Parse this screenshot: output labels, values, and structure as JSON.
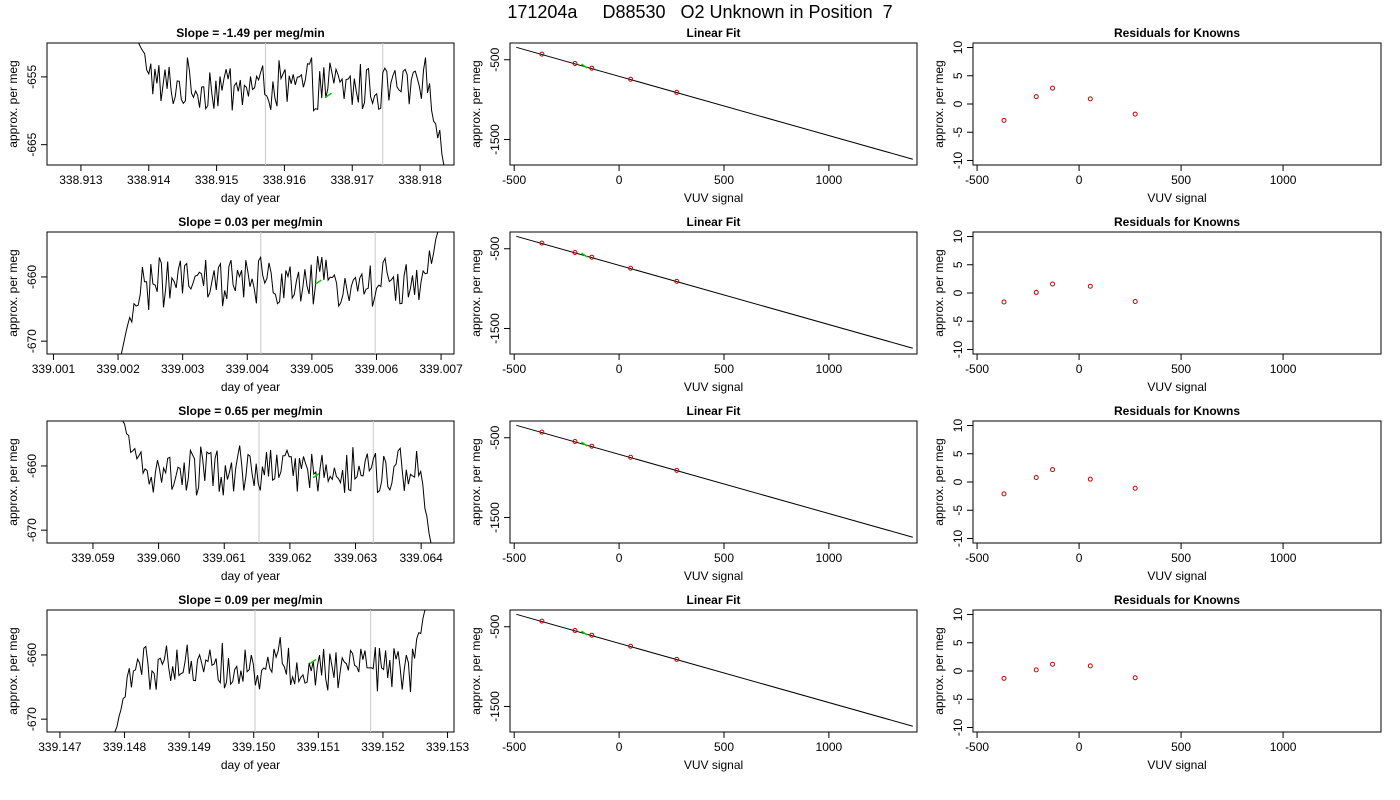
{
  "figure_title": "171204a     D88530   O2 Unknown in Position  7",
  "colors": {
    "trace": "#000000",
    "unknown_point": "#00cc00",
    "residual_point": "#cc0000",
    "marker_line": "#c8c8c8",
    "fit_line": "#000000"
  },
  "chart_data": [
    {
      "type": "line",
      "row": 0,
      "panel": "time-series",
      "title": "Slope =  -1.49  per meg/min",
      "xlabel": "day of year",
      "ylabel": "approx. per meg",
      "xlim": [
        338.9125,
        338.9185
      ],
      "ylim": [
        -668,
        -650
      ],
      "xticks": [
        338.913,
        338.914,
        338.915,
        338.916,
        338.917,
        338.918
      ],
      "xtick_labels": [
        "338.913",
        "338.914",
        "338.915",
        "338.916",
        "338.917",
        "338.918"
      ],
      "yticks": [
        -655,
        -665
      ],
      "ytick_labels": [
        "-655",
        "-665"
      ],
      "vlines": [
        338.91572,
        338.91745
      ],
      "start": [
        338.91385,
        -650
      ],
      "end": [
        338.91835,
        -668
      ],
      "mean_level": -656.5,
      "unknown_marker": [
        338.91665,
        -657.7
      ]
    },
    {
      "type": "scatter",
      "row": 0,
      "panel": "linear-fit",
      "title": "Linear Fit",
      "xlabel": "VUV signal",
      "ylabel": "approx. per meg",
      "xlim": [
        -520,
        1420
      ],
      "ylim": [
        -1820,
        -290
      ],
      "xticks": [
        -500,
        0,
        500,
        1000
      ],
      "xtick_labels": [
        "-500",
        "0",
        "500",
        "1000"
      ],
      "yticks": [
        -500,
        -1500
      ],
      "ytick_labels": [
        "-500",
        "-1500"
      ],
      "fit_line": [
        [
          -490,
          -344
        ],
        [
          1400,
          -1748
        ]
      ],
      "knowns_x": [
        -368,
        -210,
        -130,
        55,
        275
      ],
      "knowns_y": [
        -429,
        -547,
        -606,
        -745,
        -909
      ],
      "unknown_point": [
        -165,
        -580
      ]
    },
    {
      "type": "scatter",
      "row": 0,
      "panel": "residuals",
      "title": "Residuals for Knowns",
      "xlabel": "VUV signal",
      "ylabel": "approx. per meg",
      "xlim": [
        -520,
        1480
      ],
      "ylim": [
        -10.8,
        10.8
      ],
      "xticks": [
        -500,
        0,
        500,
        1000
      ],
      "xtick_labels": [
        "-500",
        "0",
        "500",
        "1000"
      ],
      "yticks": [
        -10,
        -5,
        0,
        5,
        10
      ],
      "ytick_labels": [
        "-10",
        "-5",
        "0",
        "5",
        "10"
      ],
      "x": [
        -368,
        -210,
        -130,
        55,
        275
      ],
      "y": [
        -2.9,
        1.3,
        2.8,
        0.9,
        -1.8
      ]
    },
    {
      "type": "line",
      "row": 1,
      "panel": "time-series",
      "title": "Slope =  0.03  per meg/min",
      "xlabel": "day of year",
      "ylabel": "approx. per meg",
      "xlim": [
        339.0009,
        339.0072
      ],
      "ylim": [
        -672,
        -653
      ],
      "xticks": [
        339.001,
        339.002,
        339.003,
        339.004,
        339.005,
        339.006,
        339.007
      ],
      "xtick_labels": [
        "339.001",
        "339.002",
        "339.003",
        "339.004",
        "339.005",
        "339.006",
        "339.007"
      ],
      "yticks": [
        -660,
        -670
      ],
      "ytick_labels": [
        "-660",
        "-670"
      ],
      "vlines": [
        339.00421,
        339.00598
      ],
      "start": [
        339.00205,
        -672
      ],
      "end": [
        339.00695,
        -653
      ],
      "mean_level": -661.0,
      "unknown_marker": [
        339.0051,
        -660.8
      ]
    },
    {
      "type": "scatter",
      "row": 1,
      "panel": "linear-fit",
      "title": "Linear Fit",
      "xlabel": "VUV signal",
      "ylabel": "approx. per meg",
      "xlim": [
        -520,
        1420
      ],
      "ylim": [
        -1820,
        -290
      ],
      "xticks": [
        -500,
        0,
        500,
        1000
      ],
      "xtick_labels": [
        "-500",
        "0",
        "500",
        "1000"
      ],
      "yticks": [
        -500,
        -1500
      ],
      "ytick_labels": [
        "-500",
        "-1500"
      ],
      "fit_line": [
        [
          -490,
          -344
        ],
        [
          1400,
          -1748
        ]
      ],
      "knowns_x": [
        -368,
        -210,
        -130,
        55,
        275
      ],
      "knowns_y": [
        -429,
        -547,
        -606,
        -745,
        -909
      ],
      "unknown_point": [
        -165,
        -580
      ]
    },
    {
      "type": "scatter",
      "row": 1,
      "panel": "residuals",
      "title": "Residuals for Knowns",
      "xlabel": "VUV signal",
      "ylabel": "approx. per meg",
      "xlim": [
        -520,
        1480
      ],
      "ylim": [
        -10.8,
        10.8
      ],
      "xticks": [
        -500,
        0,
        500,
        1000
      ],
      "xtick_labels": [
        "-500",
        "0",
        "500",
        "1000"
      ],
      "yticks": [
        -10,
        -5,
        0,
        5,
        10
      ],
      "ytick_labels": [
        "-10",
        "-5",
        "0",
        "5",
        "10"
      ],
      "x": [
        -368,
        -210,
        -130,
        55,
        275
      ],
      "y": [
        -1.6,
        0.1,
        1.6,
        1.2,
        -1.5
      ]
    },
    {
      "type": "line",
      "row": 2,
      "panel": "time-series",
      "title": "Slope =  0.65  per meg/min",
      "xlabel": "day of year",
      "ylabel": "approx. per meg",
      "xlim": [
        339.0583,
        339.0645
      ],
      "ylim": [
        -672,
        -653
      ],
      "xticks": [
        339.059,
        339.06,
        339.061,
        339.062,
        339.063,
        339.064
      ],
      "xtick_labels": [
        "339.059",
        "339.060",
        "339.061",
        "339.062",
        "339.063",
        "339.064"
      ],
      "yticks": [
        -660,
        -670
      ],
      "ytick_labels": [
        "-660",
        "-670"
      ],
      "vlines": [
        339.06153,
        339.06327
      ],
      "start": [
        339.05945,
        -653
      ],
      "end": [
        339.06415,
        -672
      ],
      "mean_level": -661.0,
      "unknown_marker": [
        339.0624,
        -661.5
      ]
    },
    {
      "type": "scatter",
      "row": 2,
      "panel": "linear-fit",
      "title": "Linear Fit",
      "xlabel": "VUV signal",
      "ylabel": "approx. per meg",
      "xlim": [
        -520,
        1420
      ],
      "ylim": [
        -1820,
        -290
      ],
      "xticks": [
        -500,
        0,
        500,
        1000
      ],
      "xtick_labels": [
        "-500",
        "0",
        "500",
        "1000"
      ],
      "yticks": [
        -500,
        -1500
      ],
      "ytick_labels": [
        "-500",
        "-1500"
      ],
      "fit_line": [
        [
          -490,
          -344
        ],
        [
          1400,
          -1748
        ]
      ],
      "knowns_x": [
        -368,
        -210,
        -130,
        55,
        275
      ],
      "knowns_y": [
        -429,
        -547,
        -606,
        -745,
        -909
      ],
      "unknown_point": [
        -165,
        -580
      ]
    },
    {
      "type": "scatter",
      "row": 2,
      "panel": "residuals",
      "title": "Residuals for Knowns",
      "xlabel": "VUV signal",
      "ylabel": "approx. per meg",
      "xlim": [
        -520,
        1480
      ],
      "ylim": [
        -10.8,
        10.8
      ],
      "xticks": [
        -500,
        0,
        500,
        1000
      ],
      "xtick_labels": [
        "-500",
        "0",
        "500",
        "1000"
      ],
      "yticks": [
        -10,
        -5,
        0,
        5,
        10
      ],
      "ytick_labels": [
        "-10",
        "-5",
        "0",
        "5",
        "10"
      ],
      "x": [
        -368,
        -210,
        -130,
        55,
        275
      ],
      "y": [
        -2.1,
        0.8,
        2.2,
        0.5,
        -1.1
      ]
    },
    {
      "type": "line",
      "row": 3,
      "panel": "time-series",
      "title": "Slope =  0.09  per meg/min",
      "xlabel": "day of year",
      "ylabel": "approx. per meg",
      "xlim": [
        339.1468,
        339.1531
      ],
      "ylim": [
        -672,
        -653
      ],
      "xticks": [
        339.147,
        339.148,
        339.149,
        339.15,
        339.151,
        339.152,
        339.153
      ],
      "xtick_labels": [
        "339.147",
        "339.148",
        "339.149",
        "339.150",
        "339.151",
        "339.152",
        "339.153"
      ],
      "yticks": [
        -660,
        -670
      ],
      "ytick_labels": [
        "-660",
        "-670"
      ],
      "vlines": [
        339.15002,
        339.15181
      ],
      "start": [
        339.14785,
        -672
      ],
      "end": [
        339.15265,
        -653
      ],
      "mean_level": -661.5,
      "unknown_marker": [
        339.15092,
        -661.0
      ]
    },
    {
      "type": "scatter",
      "row": 3,
      "panel": "linear-fit",
      "title": "Linear Fit",
      "xlabel": "VUV signal",
      "ylabel": "approx. per meg",
      "xlim": [
        -520,
        1420
      ],
      "ylim": [
        -1820,
        -290
      ],
      "xticks": [
        -500,
        0,
        500,
        1000
      ],
      "xtick_labels": [
        "-500",
        "0",
        "500",
        "1000"
      ],
      "yticks": [
        -500,
        -1500
      ],
      "ytick_labels": [
        "-500",
        "-1500"
      ],
      "fit_line": [
        [
          -490,
          -344
        ],
        [
          1400,
          -1748
        ]
      ],
      "knowns_x": [
        -368,
        -210,
        -130,
        55,
        275
      ],
      "knowns_y": [
        -429,
        -547,
        -606,
        -745,
        -909
      ],
      "unknown_point": [
        -165,
        -580
      ]
    },
    {
      "type": "scatter",
      "row": 3,
      "panel": "residuals",
      "title": "Residuals for Knowns",
      "xlabel": "VUV signal",
      "ylabel": "approx. per meg",
      "xlim": [
        -520,
        1480
      ],
      "ylim": [
        -10.8,
        10.8
      ],
      "xticks": [
        -500,
        0,
        500,
        1000
      ],
      "xtick_labels": [
        "-500",
        "0",
        "500",
        "1000"
      ],
      "yticks": [
        -10,
        -5,
        0,
        5,
        10
      ],
      "ytick_labels": [
        "-10",
        "-5",
        "0",
        "5",
        "10"
      ],
      "x": [
        -368,
        -210,
        -130,
        55,
        275
      ],
      "y": [
        -1.3,
        0.2,
        1.2,
        0.9,
        -1.2
      ]
    }
  ]
}
